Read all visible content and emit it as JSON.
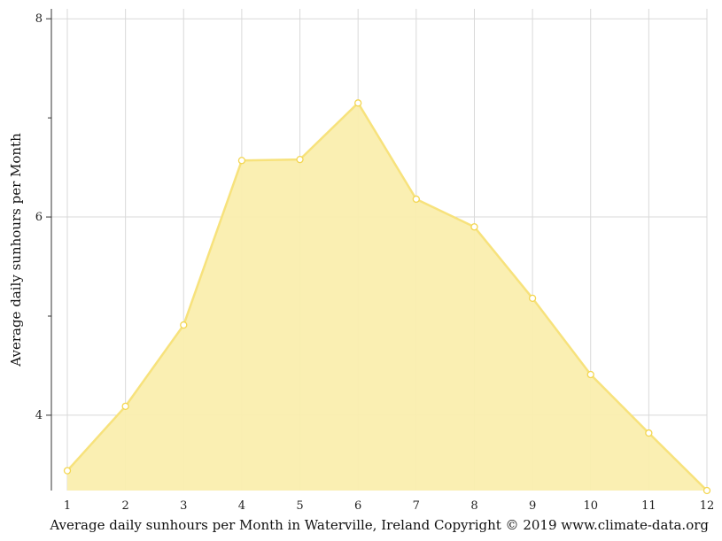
{
  "chart_data": {
    "type": "area",
    "title": "",
    "xlabel": "Average daily sunhours per Month in Waterville, Ireland Copyright © 2019 www.climate-data.org",
    "ylabel": "Average daily sunhours per Month",
    "x": [
      1,
      2,
      3,
      4,
      5,
      6,
      7,
      8,
      9,
      10,
      11,
      12
    ],
    "series": [
      {
        "values": [
          3.44,
          4.09,
          4.91,
          6.57,
          6.58,
          7.15,
          6.18,
          5.9,
          5.18,
          4.41,
          3.82,
          3.24
        ]
      }
    ],
    "xlim": [
      1,
      12
    ],
    "ylim": [
      3.24,
      8.1
    ],
    "yticks": [
      4,
      6,
      8
    ],
    "y_minor_ticks": [
      5,
      7
    ],
    "grid": true,
    "legend": "none",
    "colors": {
      "fill": "#faeeae",
      "line": "#f7e27c",
      "marker_stroke": "#f3d652",
      "grid": "#d9d9d9",
      "axis": "#333333"
    }
  }
}
